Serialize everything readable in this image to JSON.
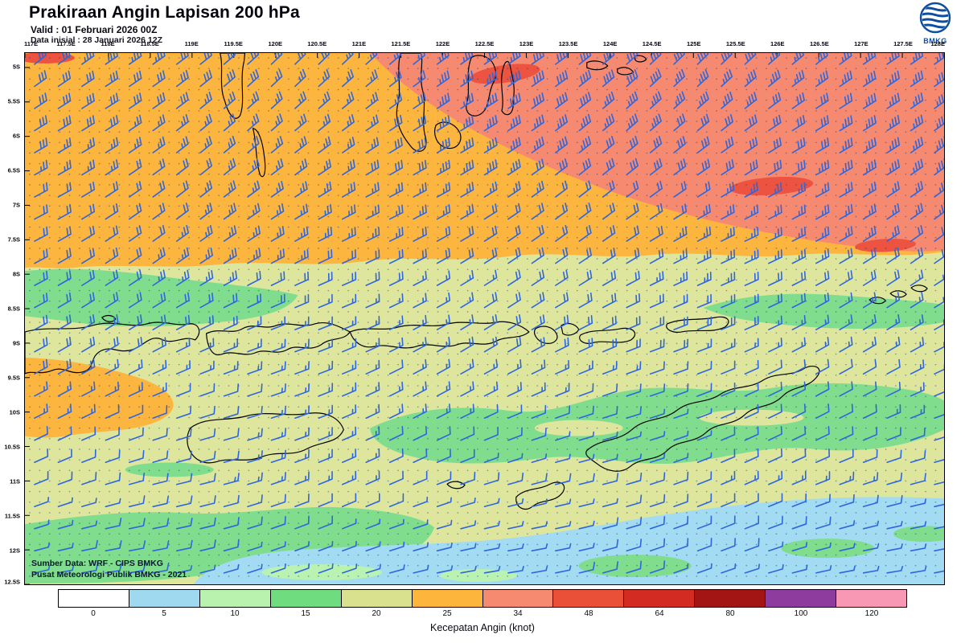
{
  "header": {
    "title": "Prakiraan Angin Lapisan 200 hPa",
    "valid": "Valid : 01 Februari 2026 00Z",
    "init": "Data inisial : 28 Januari 2026 12Z",
    "logo_text": "BMKG"
  },
  "map": {
    "x_ticks": [
      "117E",
      "117.5E",
      "118E",
      "118.5E",
      "119E",
      "119.5E",
      "120E",
      "120.5E",
      "121E",
      "121.5E",
      "122E",
      "122.5E",
      "123E",
      "123.5E",
      "124E",
      "124.5E",
      "125E",
      "125.5E",
      "126E",
      "126.5E",
      "127E",
      "127.5E",
      "128E"
    ],
    "y_ticks": [
      "5S",
      "5.5S",
      "6S",
      "6.5S",
      "7S",
      "7.5S",
      "8S",
      "8.5S",
      "9S",
      "9.5S",
      "10S",
      "10.5S",
      "11S",
      "11.5S",
      "12S",
      "12.5S"
    ],
    "source1": "Sumber Data: WRF - CIPS BMKG",
    "source2": "Pusat Meteorologi Publik BMKG - 2021"
  },
  "legend": {
    "title": "Kecepatan Angin (knot)",
    "ticks": [
      "0",
      "5",
      "10",
      "15",
      "20",
      "25",
      "34",
      "48",
      "64",
      "80",
      "100",
      "120"
    ],
    "colors": [
      "#ffffff",
      "#9ed9f0",
      "#b8f2ae",
      "#6fdc7f",
      "#d9e08e",
      "#fdb53c",
      "#f58a70",
      "#ea4f38",
      "#d32a22",
      "#a31414",
      "#8e3c9e",
      "#f898b4"
    ]
  },
  "palette": {
    "orange": "#fcb53e",
    "salmon": "#f68a70",
    "red": "#ec5340",
    "khaki": "#dee69e",
    "green": "#7fdd8d",
    "blue": "#a2dbf2",
    "ltgreen": "#baf2b2",
    "barb": "#2e66dd",
    "dot": "#16305a",
    "coast": "#000000"
  }
}
